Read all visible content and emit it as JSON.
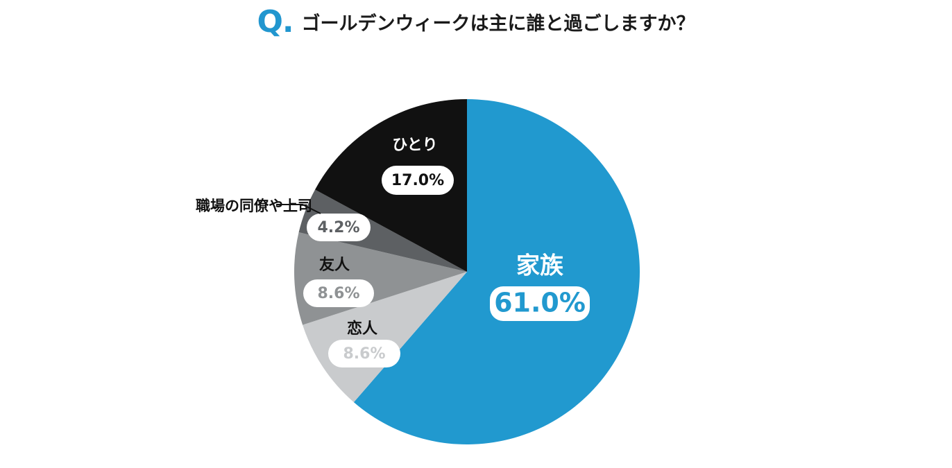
{
  "question": {
    "mark": "Q.",
    "text": "ゴールデンウィークは主に誰と過ごしますか？"
  },
  "colors": {
    "accent": "#2196cf",
    "title": "#1a1a1a"
  },
  "chart_data": {
    "type": "pie",
    "title": "ゴールデンウィークは主に誰と過ごしますか？",
    "unit": "%",
    "slices": [
      {
        "label": "家族",
        "value": 61.0,
        "display": "61.0%",
        "color": "#2199cf",
        "label_color": "#ffffff",
        "value_color": "#2199cf"
      },
      {
        "label": "恋人",
        "value": 8.6,
        "display": "8.6%",
        "color": "#c9cbcd",
        "label_color": "#111111",
        "value_color": "#c9cbcd"
      },
      {
        "label": "友人",
        "value": 8.6,
        "display": "8.6%",
        "color": "#8f9294",
        "label_color": "#111111",
        "value_color": "#8f9294"
      },
      {
        "label": "職場の同僚や上司",
        "value": 4.2,
        "display": "4.2%",
        "color": "#5d6063",
        "label_color": "#111111",
        "value_color": "#5d6063"
      },
      {
        "label": "ひとり",
        "value": 17.0,
        "display": "17.0%",
        "color": "#111111",
        "label_color": "#ffffff",
        "value_color": "#111111"
      }
    ],
    "start": "top",
    "direction": "clockwise"
  }
}
